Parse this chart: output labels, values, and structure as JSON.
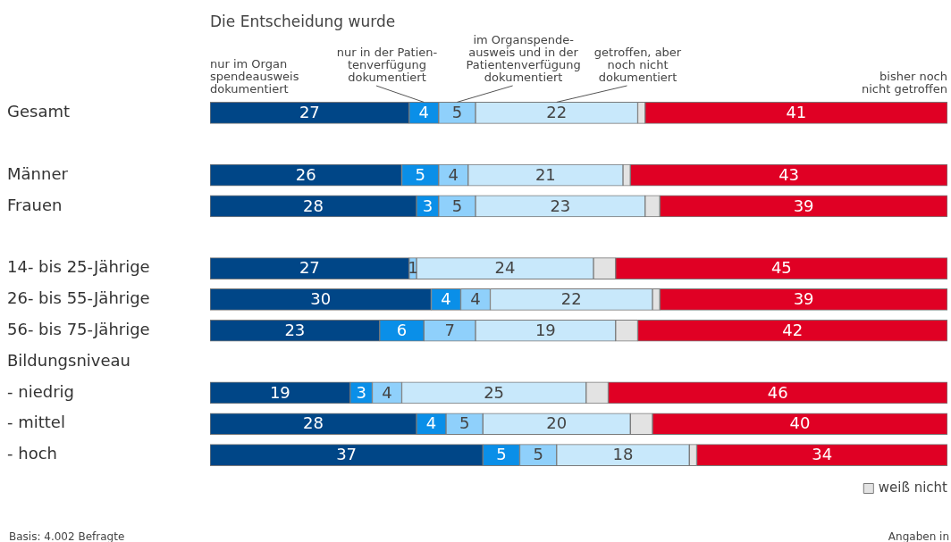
{
  "chart_data": {
    "type": "bar",
    "orientation": "horizontal",
    "stacked": true,
    "title": "Die Entscheidung wurde",
    "categories": [
      "Gesamt",
      null,
      "Männer",
      "Frauen",
      null,
      "14- bis 25-Jährige",
      "26- bis 55-Jährige",
      "56- bis 75-Jährige",
      "Bildungsniveau",
      "- niedrig",
      "- mittel",
      "- hoch"
    ],
    "xlim": [
      0,
      100
    ],
    "tick_labels": "y",
    "legend": "bottom right",
    "series": [
      {
        "name": "nur im Organ\nspendeausweis\ndokumentiert",
        "color": "#004687",
        "values": [
          27,
          null,
          26,
          28,
          null,
          27,
          30,
          23,
          null,
          19,
          28,
          37
        ],
        "value_labels": [
          "27",
          null,
          "26",
          "28",
          null,
          "27",
          "30",
          "23",
          null,
          "19",
          "28",
          "37"
        ]
      },
      {
        "name": "nur in der Patien-\ntenverfügung\ndokumentiert",
        "color": "#0a8fe8",
        "values": [
          4,
          null,
          5,
          3,
          null,
          null,
          4,
          6,
          null,
          3,
          4,
          5
        ],
        "value_labels": [
          "4",
          null,
          "5",
          "3",
          null,
          null,
          "4",
          "6",
          null,
          "3",
          "4",
          "5"
        ]
      },
      {
        "name": "im Organspende-\nausweis und in der\nPatientenverfügung\ndokumentiert",
        "color": "#8fd0fb",
        "values": [
          5,
          null,
          4,
          5,
          null,
          1,
          4,
          7,
          null,
          4,
          5,
          5
        ],
        "value_labels": [
          "5",
          null,
          "4",
          "5",
          null,
          "1",
          "4",
          "7",
          null,
          "4",
          "5",
          "5"
        ]
      },
      {
        "name": "getroffen, aber\nnoch nicht\ndokumentiert",
        "color": "#c8e8fb",
        "values": [
          22,
          null,
          21,
          23,
          null,
          24,
          22,
          19,
          null,
          25,
          20,
          18
        ],
        "value_labels": [
          "22",
          null,
          "21",
          "23",
          null,
          "24",
          "22",
          "19",
          null,
          "25",
          "20",
          "18"
        ]
      },
      {
        "name": "weiß nicht",
        "color": "#e3e3e3",
        "values": [
          1,
          null,
          1,
          2,
          null,
          3,
          1,
          3,
          null,
          3,
          3,
          1
        ]
      },
      {
        "name": "bisher noch\nnicht getroffen",
        "color": "#e00024",
        "values": [
          41,
          null,
          43,
          39,
          null,
          45,
          39,
          42,
          null,
          46,
          40,
          34
        ],
        "value_labels": [
          "41",
          null,
          "43",
          "39",
          null,
          "45",
          "39",
          "42",
          null,
          "46",
          "40",
          "34"
        ]
      }
    ],
    "annotations": [
      "Basis: 4.002 Befragte",
      "Angaben in"
    ]
  }
}
